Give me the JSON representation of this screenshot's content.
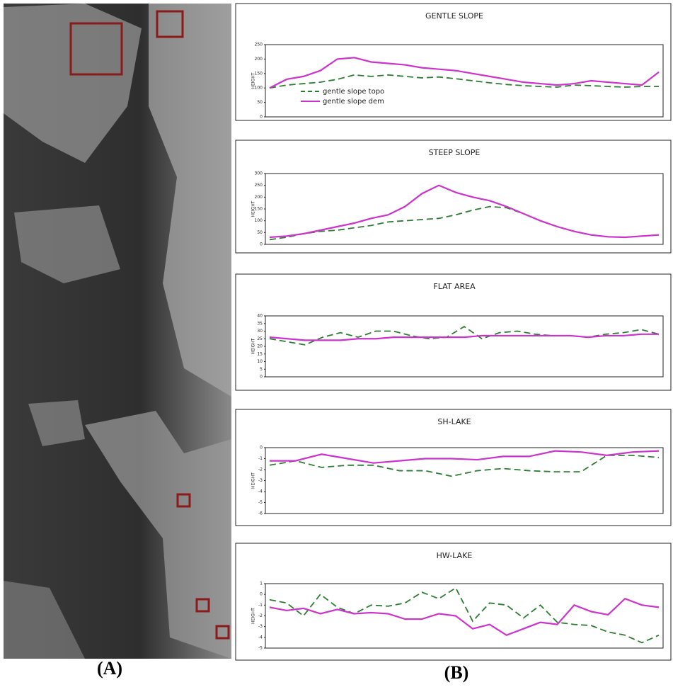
{
  "chart_data": [
    {
      "type": "line",
      "title": "GENTLE SLOPE",
      "ylabel": "HEIGHT",
      "ylim": [
        0,
        250
      ],
      "yticks": [
        0,
        50,
        100,
        150,
        200,
        250
      ],
      "legend": "lower left",
      "series": [
        {
          "name": "gentle slope topo",
          "color": "#2e7d32",
          "dash": true,
          "values": [
            100,
            110,
            115,
            120,
            130,
            145,
            140,
            145,
            140,
            135,
            138,
            132,
            125,
            118,
            112,
            108,
            105,
            103,
            110,
            108,
            105,
            103,
            105,
            105
          ]
        },
        {
          "name": "gentle slope dem",
          "color": "#cc33cc",
          "values": [
            100,
            130,
            140,
            160,
            200,
            205,
            190,
            185,
            180,
            170,
            165,
            160,
            150,
            140,
            130,
            120,
            115,
            110,
            115,
            125,
            120,
            115,
            110,
            155
          ]
        }
      ]
    },
    {
      "type": "line",
      "title": "STEEP SLOPE",
      "ylabel": "HEIGHT",
      "ylim": [
        0,
        300
      ],
      "yticks": [
        0,
        50,
        100,
        150,
        200,
        250,
        300
      ],
      "series": [
        {
          "color": "#2e7d32",
          "dash": true,
          "values": [
            20,
            30,
            45,
            55,
            60,
            70,
            80,
            95,
            100,
            105,
            110,
            125,
            145,
            160,
            155,
            130,
            100,
            75,
            55,
            40,
            32,
            30,
            35,
            40
          ]
        },
        {
          "color": "#cc33cc",
          "values": [
            30,
            35,
            45,
            60,
            75,
            90,
            110,
            125,
            160,
            215,
            250,
            220,
            200,
            185,
            160,
            130,
            100,
            75,
            55,
            40,
            32,
            30,
            35,
            40
          ]
        }
      ]
    },
    {
      "type": "line",
      "title": "FLAT AREA",
      "ylabel": "HEIGHT",
      "ylim": [
        0,
        40
      ],
      "yticks": [
        0,
        5,
        10,
        15,
        20,
        25,
        30,
        35,
        40
      ],
      "series": [
        {
          "color": "#2e7d32",
          "dash": true,
          "values": [
            25,
            23,
            21,
            26,
            29,
            26,
            30,
            30,
            27,
            25,
            26,
            33,
            25,
            29,
            30,
            28,
            27,
            27,
            26,
            28,
            29,
            31,
            28
          ]
        },
        {
          "color": "#cc33cc",
          "values": [
            26,
            25,
            24,
            24,
            24,
            25,
            25,
            26,
            26,
            26,
            26,
            26,
            27,
            27,
            27,
            27,
            27,
            27,
            26,
            27,
            27,
            28,
            28
          ]
        }
      ]
    },
    {
      "type": "line",
      "title": "SH-LAKE",
      "ylabel": "HEIGHT",
      "ylim": [
        -6,
        0
      ],
      "yticks": [
        -6,
        -5,
        -4,
        -3,
        -2,
        -1,
        0
      ],
      "series": [
        {
          "color": "#2e7d32",
          "dash": true,
          "values": [
            -1.6,
            -1.2,
            -1.8,
            -1.6,
            -1.6,
            -2.1,
            -2.1,
            -2.6,
            -2.1,
            -1.9,
            -2.1,
            -2.2,
            -2.2,
            -0.7,
            -0.7,
            -0.9
          ]
        },
        {
          "color": "#cc33cc",
          "values": [
            -1.2,
            -1.2,
            -0.6,
            -1.0,
            -1.4,
            -1.2,
            -1.0,
            -1.0,
            -1.1,
            -0.8,
            -0.8,
            -0.3,
            -0.4,
            -0.7,
            -0.4,
            -0.3
          ]
        }
      ]
    },
    {
      "type": "line",
      "title": "HW-LAKE",
      "ylabel": "HEIGHT",
      "ylim": [
        -5,
        1
      ],
      "yticks": [
        -5,
        -4,
        -3,
        -2,
        -1,
        0,
        1
      ],
      "series": [
        {
          "color": "#2e7d32",
          "dash": true,
          "values": [
            -0.5,
            -0.8,
            -2.0,
            0.0,
            -1.2,
            -1.8,
            -1.0,
            -1.1,
            -0.8,
            0.2,
            -0.4,
            0.6,
            -2.5,
            -0.8,
            -1.0,
            -2.2,
            -1.0,
            -2.6,
            -2.8,
            -2.9,
            -3.5,
            -3.8,
            -4.5,
            -3.8
          ]
        },
        {
          "color": "#cc33cc",
          "values": [
            -1.2,
            -1.5,
            -1.3,
            -1.8,
            -1.4,
            -1.8,
            -1.7,
            -1.8,
            -2.3,
            -2.3,
            -1.8,
            -2.0,
            -3.2,
            -2.8,
            -3.8,
            -3.2,
            -2.6,
            -2.8,
            -1.0,
            -1.6,
            -1.9,
            -0.4,
            -1.0,
            -1.2
          ]
        }
      ]
    }
  ],
  "panel_labels": [
    "(A)",
    "(B)"
  ]
}
